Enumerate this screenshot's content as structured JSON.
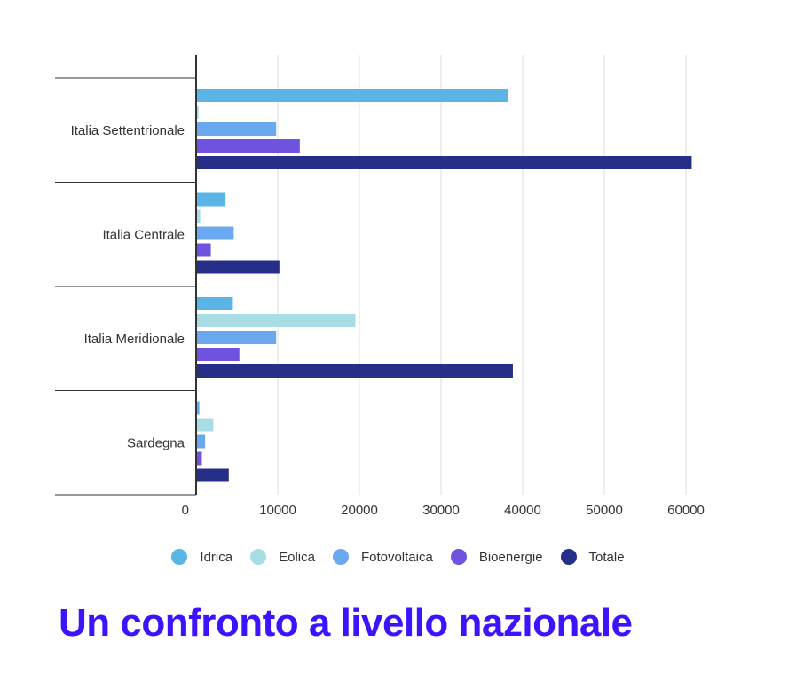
{
  "chart_data": {
    "type": "bar",
    "orientation": "horizontal",
    "title": "Un confronto a livello nazionale",
    "categories": [
      "Italia Settentrionale",
      "Italia Centrale",
      "Italia Meridionale",
      "Sardegna"
    ],
    "series": [
      {
        "name": "Idrica",
        "color": "#5ab4e6",
        "values": [
          38200,
          3600,
          4500,
          400
        ]
      },
      {
        "name": "Eolica",
        "color": "#a9dde6",
        "values": [
          300,
          500,
          19500,
          2100
        ]
      },
      {
        "name": "Fotovoltaica",
        "color": "#6aa8ef",
        "values": [
          9800,
          4600,
          9800,
          1100
        ]
      },
      {
        "name": "Bioenergie",
        "color": "#6f52dd",
        "values": [
          12700,
          1800,
          5300,
          700
        ]
      },
      {
        "name": "Totale",
        "color": "#262f88",
        "values": [
          60700,
          10200,
          38800,
          4000
        ]
      }
    ],
    "xlim": [
      0,
      65000
    ],
    "xticks": [
      0,
      10000,
      20000,
      30000,
      40000,
      50000,
      60000
    ],
    "xtick_labels": [
      "0",
      "10000",
      "20000",
      "30000",
      "40000",
      "50000",
      "60000"
    ],
    "grid": true,
    "legend_position": "bottom-center"
  }
}
